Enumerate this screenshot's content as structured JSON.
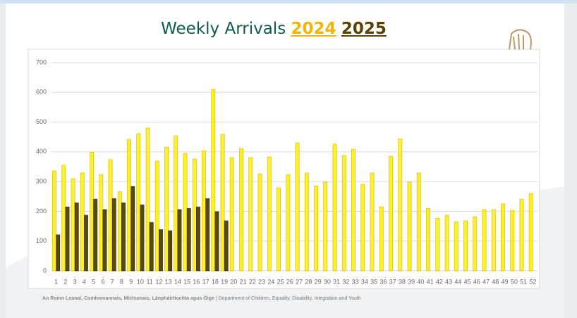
{
  "chart_data": {
    "type": "bar",
    "title": "Weekly Arrivals",
    "categories": [
      "1",
      "2",
      "3",
      "4",
      "5",
      "6",
      "7",
      "8",
      "9",
      "10",
      "11",
      "12",
      "13",
      "14",
      "15",
      "16",
      "17",
      "18",
      "19",
      "20",
      "21",
      "22",
      "23",
      "24",
      "25",
      "26",
      "27",
      "28",
      "29",
      "30",
      "31",
      "32",
      "33",
      "34",
      "35",
      "36",
      "37",
      "38",
      "39",
      "40",
      "41",
      "42",
      "43",
      "44",
      "45",
      "46",
      "47",
      "48",
      "49",
      "50",
      "51",
      "52"
    ],
    "series": [
      {
        "name": "2024",
        "color": "#fff02a",
        "values": [
          336,
          355,
          310,
          329,
          399,
          324,
          374,
          267,
          442,
          461,
          480,
          369,
          416,
          454,
          395,
          376,
          404,
          610,
          459,
          381,
          411,
          381,
          326,
          383,
          279,
          324,
          430,
          329,
          286,
          298,
          426,
          388,
          409,
          291,
          329,
          215,
          385,
          444,
          298,
          329,
          210,
          177,
          187,
          165,
          168,
          182,
          206,
          206,
          225,
          203,
          241,
          260
        ]
      },
      {
        "name": "2025",
        "color": "#5c4a0b",
        "values": [
          121,
          215,
          229,
          187,
          241,
          206,
          243,
          229,
          284,
          222,
          163,
          139,
          135,
          206,
          210,
          215,
          243,
          199,
          168,
          null,
          null,
          null,
          null,
          null,
          null,
          null,
          null,
          null,
          null,
          null,
          null,
          null,
          null,
          null,
          null,
          null,
          null,
          null,
          null,
          null,
          null,
          null,
          null,
          null,
          null,
          null,
          null,
          null,
          null,
          null,
          null,
          null
        ]
      }
    ],
    "ylim": [
      0,
      700
    ],
    "yticks": [
      0,
      100,
      200,
      300,
      400,
      500,
      600,
      700
    ],
    "grid": true
  },
  "footer": {
    "irish": "An Roinn Leanaí, Comhionannais, Míchumais, Lánpháirtíochta agus Óige",
    "separator": "|",
    "english": "Department of Children, Equality, Disability, Integration and Youth"
  }
}
